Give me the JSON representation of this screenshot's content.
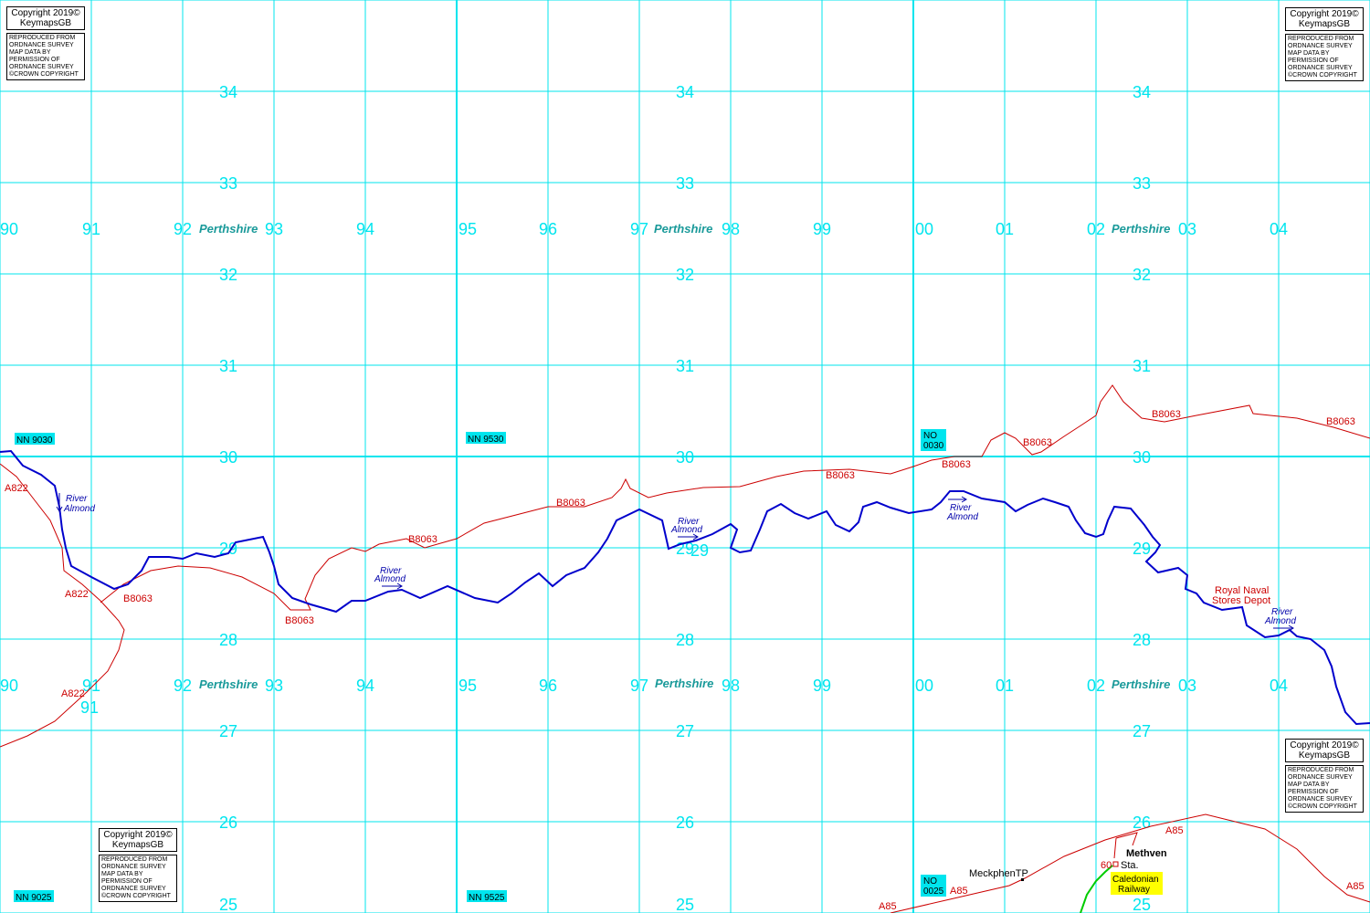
{
  "grid": {
    "easting_labels": [
      "90",
      "91",
      "92",
      "93",
      "94",
      "95",
      "96",
      "97",
      "98",
      "99",
      "00",
      "01",
      "02",
      "03",
      "04"
    ],
    "northing_labels": [
      "34",
      "33",
      "32",
      "31",
      "30",
      "29",
      "28",
      "27",
      "26",
      "25"
    ]
  },
  "county": {
    "name": "Perthshire"
  },
  "grid_refs": [
    {
      "label": "NN 9030"
    },
    {
      "label": "NN 9530"
    },
    {
      "label": "NO 0030"
    },
    {
      "label": "NN 9025"
    },
    {
      "label": "NN 9525"
    },
    {
      "label": "NO 0025"
    }
  ],
  "roads": {
    "a822": "A822",
    "b8063": "B8063",
    "a85": "A85"
  },
  "river": {
    "line1": "River",
    "line2": "Almond"
  },
  "features": {
    "depot_line1": "Royal Naval",
    "depot_line2": "Stores Depot",
    "methven": "Methven",
    "station": "Sta.",
    "station_num": "60",
    "meckphen": "MeckphenTP",
    "railway_line1": "Caledonian",
    "railway_line2": "Railway"
  },
  "copyright": {
    "line1": "Copyright 2019©",
    "line2": "KeymapsGB",
    "lines": [
      "REPRODUCED FROM",
      "ORDNANCE SURVEY",
      "MAP DATA BY",
      "PERMISSION OF",
      "ORDNANCE SURVEY",
      "©CROWN COPYRIGHT"
    ]
  },
  "colors": {
    "grid": "#00e5ee",
    "river": "#0000cc",
    "road": "#cc0000",
    "railway": "#00cc00",
    "ref_bg": "#00e5ee",
    "railway_label_bg": "#ffff00"
  }
}
